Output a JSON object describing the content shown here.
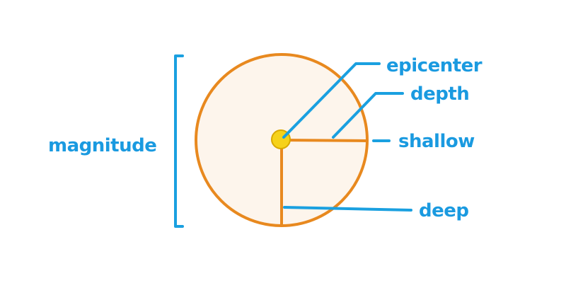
{
  "labels": {
    "magnitude": "magnitude",
    "epicenter": "epicenter",
    "depth": "depth",
    "shallow": "shallow",
    "deep": "deep"
  },
  "colors": {
    "background": "#ffffff",
    "circle_fill": "#fdf5ec",
    "circle_stroke": "#e8891f",
    "epicenter_fill": "#f6d21a",
    "epicenter_stroke": "#d9a800",
    "annotation": "#1aa0e0",
    "label_text": "#1a9ae0"
  }
}
